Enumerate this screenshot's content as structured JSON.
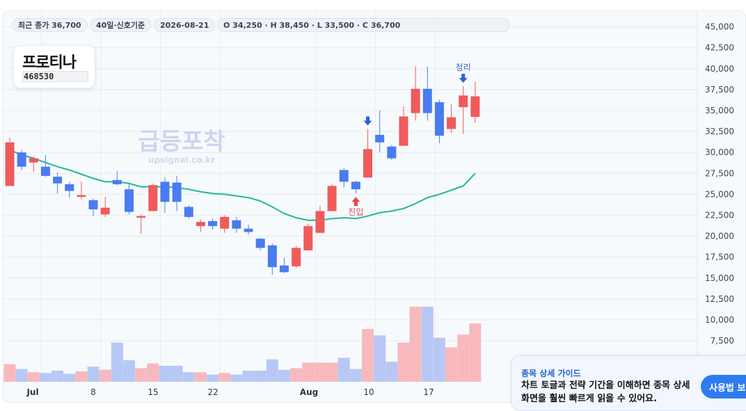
{
  "header": {
    "close_label": "최근 종가 36,700",
    "period_label": "40일·신호기준",
    "date_label": "2026-08-21",
    "ohlc_label": "O 34,250 · H 38,450 · L 33,500 · C 36,700"
  },
  "stock": {
    "name": "프로티나",
    "code": "468530"
  },
  "watermark": {
    "main": "급등포착",
    "url": "upsignal.co.kr"
  },
  "guide": {
    "title": "종목 상세 가이드",
    "body": "차트 토글과 전략 기간을 이해하면 종목 상세 화면을 훨씬 빠르게 읽을 수 있어요.",
    "button_label": "사용법 보기"
  },
  "colors": {
    "up": "#f05a5a",
    "down": "#4a7cef",
    "ma": "#1fb89a",
    "volume_up": "#f7b9bd",
    "volume_down": "#b7c8f5",
    "entry_marker": "#e8474b",
    "exit_marker": "#2f5ed8"
  },
  "chart_data": {
    "type": "candlestick",
    "x_tick_labels": [
      "Jul",
      "8",
      "15",
      "22",
      "Aug",
      "10",
      "17"
    ],
    "y_tick_labels": [
      "7,500",
      "10,000",
      "12,500",
      "15,000",
      "17,500",
      "20,000",
      "22,500",
      "25,000",
      "27,500",
      "30,000",
      "32,500",
      "35,000",
      "37,500",
      "40,000",
      "42,500",
      "45,000"
    ],
    "ylim": [
      5000,
      46000
    ],
    "y_ticks": [
      7500,
      10000,
      12500,
      15000,
      17500,
      20000,
      22500,
      25000,
      27500,
      30000,
      32500,
      35000,
      37500,
      40000,
      42500,
      45000
    ],
    "grid": true,
    "series": [
      {
        "date": "2026-06-30",
        "open": 26000,
        "high": 31800,
        "low": 26000,
        "close": 31200,
        "volume": 2.2
      },
      {
        "date": "2026-07-01",
        "open": 30000,
        "high": 30300,
        "low": 27900,
        "close": 28300,
        "volume": 1.6
      },
      {
        "date": "2026-07-02",
        "open": 28800,
        "high": 29500,
        "low": 27700,
        "close": 29300,
        "volume": 1.2
      },
      {
        "date": "2026-07-03",
        "open": 28300,
        "high": 29700,
        "low": 27100,
        "close": 27200,
        "volume": 1.1
      },
      {
        "date": "2026-07-06",
        "open": 27100,
        "high": 27600,
        "low": 25100,
        "close": 26300,
        "volume": 1.4
      },
      {
        "date": "2026-07-07",
        "open": 26200,
        "high": 26500,
        "low": 24600,
        "close": 25400,
        "volume": 1.0
      },
      {
        "date": "2026-07-08",
        "open": 24700,
        "high": 26500,
        "low": 24400,
        "close": 24900,
        "volume": 1.3
      },
      {
        "date": "2026-07-09",
        "open": 24300,
        "high": 24500,
        "low": 22400,
        "close": 23200,
        "volume": 1.9
      },
      {
        "date": "2026-07-10",
        "open": 22600,
        "high": 24700,
        "low": 22300,
        "close": 23400,
        "volume": 1.5
      },
      {
        "date": "2026-07-13",
        "open": 26700,
        "high": 27800,
        "low": 26100,
        "close": 26200,
        "volume": 4.9
      },
      {
        "date": "2026-07-14",
        "open": 25600,
        "high": 26200,
        "low": 22600,
        "close": 22900,
        "volume": 2.7
      },
      {
        "date": "2026-07-15",
        "open": 22200,
        "high": 22600,
        "low": 20300,
        "close": 22400,
        "volume": 1.7
      },
      {
        "date": "2026-07-16",
        "open": 23000,
        "high": 26300,
        "low": 23000,
        "close": 26100,
        "volume": 2.3
      },
      {
        "date": "2026-07-17",
        "open": 26500,
        "high": 27000,
        "low": 22800,
        "close": 24100,
        "volume": 2.0
      },
      {
        "date": "2026-07-20",
        "open": 26400,
        "high": 27200,
        "low": 23000,
        "close": 24100,
        "volume": 2.0
      },
      {
        "date": "2026-07-21",
        "open": 23500,
        "high": 23700,
        "low": 22100,
        "close": 22300,
        "volume": 1.2
      },
      {
        "date": "2026-07-22",
        "open": 21200,
        "high": 22000,
        "low": 20500,
        "close": 21700,
        "volume": 1.2
      },
      {
        "date": "2026-07-23",
        "open": 21800,
        "high": 22100,
        "low": 20800,
        "close": 21200,
        "volume": 0.9
      },
      {
        "date": "2026-07-24",
        "open": 20900,
        "high": 22500,
        "low": 20400,
        "close": 22300,
        "volume": 1.1
      },
      {
        "date": "2026-07-27",
        "open": 21900,
        "high": 22300,
        "low": 20400,
        "close": 20900,
        "volume": 0.9
      },
      {
        "date": "2026-07-28",
        "open": 20900,
        "high": 21400,
        "low": 20200,
        "close": 20500,
        "volume": 1.4
      },
      {
        "date": "2026-07-29",
        "open": 19700,
        "high": 19800,
        "low": 18300,
        "close": 18600,
        "volume": 1.4
      },
      {
        "date": "2026-07-30",
        "open": 18900,
        "high": 19100,
        "low": 15400,
        "close": 16300,
        "volume": 2.8
      },
      {
        "date": "2026-07-31",
        "open": 16500,
        "high": 17400,
        "low": 15600,
        "close": 15700,
        "volume": 1.5
      },
      {
        "date": "2026-08-03",
        "open": 16400,
        "high": 18800,
        "low": 16200,
        "close": 18600,
        "volume": 1.7
      },
      {
        "date": "2026-08-04",
        "open": 18300,
        "high": 21500,
        "low": 18300,
        "close": 21200,
        "volume": 2.4
      },
      {
        "date": "2026-08-05",
        "open": 20400,
        "high": 23600,
        "low": 20400,
        "close": 23000,
        "volume": 2.4
      },
      {
        "date": "2026-08-06",
        "open": 23000,
        "high": 26200,
        "low": 23000,
        "close": 26000,
        "volume": 2.4
      },
      {
        "date": "2026-08-07",
        "open": 27900,
        "high": 28100,
        "low": 25800,
        "close": 26500,
        "volume": 3.0
      },
      {
        "date": "2026-08-10",
        "open": 26500,
        "high": 26600,
        "low": 25100,
        "close": 25600,
        "volume": 1.6
      },
      {
        "date": "2026-08-11",
        "open": 27000,
        "high": 32800,
        "low": 27000,
        "close": 30400,
        "volume": 6.6
      },
      {
        "date": "2026-08-12",
        "open": 32100,
        "high": 35000,
        "low": 30000,
        "close": 31200,
        "volume": 5.8
      },
      {
        "date": "2026-08-13",
        "open": 30700,
        "high": 30900,
        "low": 29100,
        "close": 29300,
        "volume": 2.5
      },
      {
        "date": "2026-08-14",
        "open": 30800,
        "high": 35500,
        "low": 30800,
        "close": 34300,
        "volume": 4.9
      },
      {
        "date": "2026-08-17",
        "open": 34700,
        "high": 40300,
        "low": 33800,
        "close": 37600,
        "volume": 9.4
      },
      {
        "date": "2026-08-18",
        "open": 37600,
        "high": 40300,
        "low": 33800,
        "close": 34700,
        "volume": 9.4
      },
      {
        "date": "2026-08-19",
        "open": 36000,
        "high": 36300,
        "low": 31100,
        "close": 32000,
        "volume": 5.5
      },
      {
        "date": "2026-08-20",
        "open": 32800,
        "high": 35800,
        "low": 32300,
        "close": 34200,
        "volume": 4.3
      },
      {
        "date": "2026-08-21",
        "open": 35400,
        "high": 37900,
        "low": 32200,
        "close": 36800,
        "volume": 5.9
      },
      {
        "date": "2026-08-24",
        "open": 34250,
        "high": 38450,
        "low": 33500,
        "close": 36700,
        "volume": 7.3
      }
    ],
    "moving_average": [
      30300,
      29700,
      29300,
      28800,
      28300,
      27900,
      27400,
      26900,
      26500,
      26500,
      26300,
      25900,
      25900,
      25900,
      25800,
      25600,
      25300,
      25100,
      25000,
      24800,
      24600,
      24200,
      23500,
      22700,
      22200,
      21900,
      21900,
      22100,
      22200,
      22100,
      22400,
      22800,
      23000,
      23300,
      23900,
      24600,
      25000,
      25500,
      26000,
      27500
    ],
    "signals": [
      {
        "date": "2026-08-10",
        "type": "entry",
        "label": "진입"
      },
      {
        "date": "2026-08-11",
        "type": "exit",
        "label": ""
      },
      {
        "date": "2026-08-21",
        "type": "exit",
        "label": "정리"
      }
    ]
  }
}
